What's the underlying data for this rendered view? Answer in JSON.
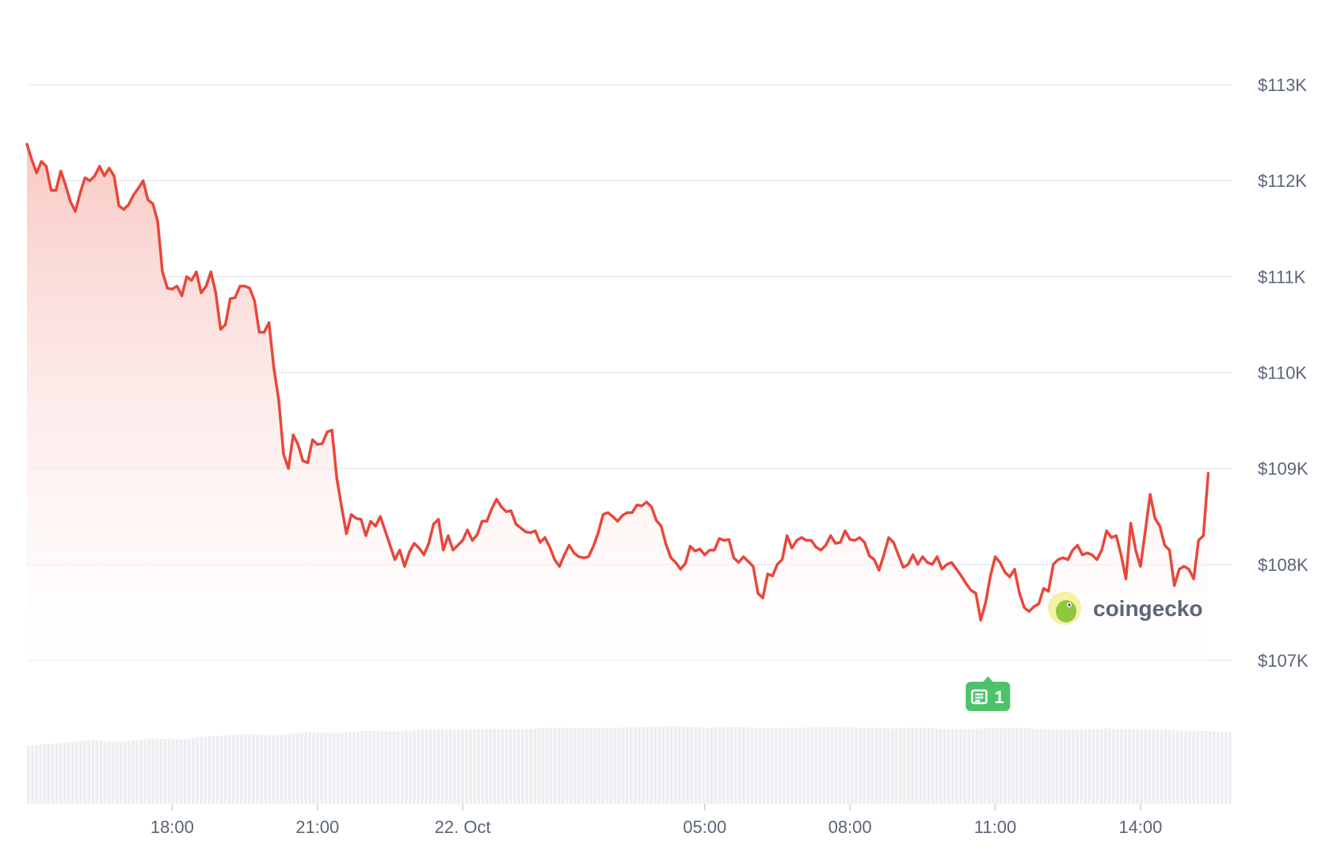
{
  "chart_data": {
    "type": "area",
    "ylim": [
      107000,
      113000
    ],
    "y_ticks": [
      {
        "value": 113000,
        "label": "$113K"
      },
      {
        "value": 112000,
        "label": "$112K"
      },
      {
        "value": 111000,
        "label": "$111K"
      },
      {
        "value": 110000,
        "label": "$110K"
      },
      {
        "value": 109000,
        "label": "$109K"
      },
      {
        "value": 108000,
        "label": "$108K"
      },
      {
        "value": 107000,
        "label": "$107K"
      }
    ],
    "x_range_hours": [
      15,
      39.9
    ],
    "x_ticks": [
      {
        "hour": 18,
        "label": "18:00"
      },
      {
        "hour": 21,
        "label": "21:00"
      },
      {
        "hour": 24,
        "label": "22. Oct"
      },
      {
        "hour": 29,
        "label": "05:00"
      },
      {
        "hour": 32,
        "label": "08:00"
      },
      {
        "hour": 35,
        "label": "11:00"
      },
      {
        "hour": 38,
        "label": "14:00"
      }
    ],
    "series": [
      {
        "points": [
          [
            15.0,
            112380
          ],
          [
            15.1,
            112220
          ],
          [
            15.2,
            112080
          ],
          [
            15.3,
            112200
          ],
          [
            15.4,
            112150
          ],
          [
            15.5,
            111900
          ],
          [
            15.6,
            111900
          ],
          [
            15.7,
            112100
          ],
          [
            15.8,
            111950
          ],
          [
            15.9,
            111780
          ],
          [
            16.0,
            111680
          ],
          [
            16.1,
            111870
          ],
          [
            16.2,
            112030
          ],
          [
            16.3,
            112000
          ],
          [
            16.4,
            112050
          ],
          [
            16.5,
            112150
          ],
          [
            16.6,
            112050
          ],
          [
            16.7,
            112130
          ],
          [
            16.8,
            112050
          ],
          [
            16.9,
            111740
          ],
          [
            17.0,
            111700
          ],
          [
            17.1,
            111750
          ],
          [
            17.2,
            111850
          ],
          [
            17.3,
            111920
          ],
          [
            17.4,
            112000
          ],
          [
            17.5,
            111800
          ],
          [
            17.6,
            111760
          ],
          [
            17.7,
            111580
          ],
          [
            17.8,
            111050
          ],
          [
            17.9,
            110880
          ],
          [
            18.0,
            110870
          ],
          [
            18.1,
            110900
          ],
          [
            18.2,
            110800
          ],
          [
            18.3,
            111000
          ],
          [
            18.4,
            110960
          ],
          [
            18.5,
            111050
          ],
          [
            18.6,
            110830
          ],
          [
            18.7,
            110900
          ],
          [
            18.8,
            111050
          ],
          [
            18.9,
            110830
          ],
          [
            19.0,
            110450
          ],
          [
            19.1,
            110500
          ],
          [
            19.2,
            110770
          ],
          [
            19.3,
            110780
          ],
          [
            19.4,
            110900
          ],
          [
            19.5,
            110900
          ],
          [
            19.6,
            110880
          ],
          [
            19.7,
            110750
          ],
          [
            19.8,
            110420
          ],
          [
            19.9,
            110420
          ],
          [
            20.0,
            110520
          ],
          [
            20.1,
            110050
          ],
          [
            20.2,
            109720
          ],
          [
            20.3,
            109150
          ],
          [
            20.4,
            109000
          ],
          [
            20.5,
            109350
          ],
          [
            20.6,
            109250
          ],
          [
            20.7,
            109080
          ],
          [
            20.8,
            109060
          ],
          [
            20.9,
            109300
          ],
          [
            21.0,
            109250
          ],
          [
            21.1,
            109260
          ],
          [
            21.2,
            109380
          ],
          [
            21.3,
            109400
          ],
          [
            21.4,
            108900
          ],
          [
            21.5,
            108600
          ],
          [
            21.6,
            108320
          ],
          [
            21.7,
            108520
          ],
          [
            21.8,
            108480
          ],
          [
            21.9,
            108470
          ],
          [
            22.0,
            108300
          ],
          [
            22.1,
            108450
          ],
          [
            22.2,
            108400
          ],
          [
            22.3,
            108500
          ],
          [
            22.4,
            108350
          ],
          [
            22.5,
            108200
          ],
          [
            22.6,
            108050
          ],
          [
            22.7,
            108150
          ],
          [
            22.8,
            107980
          ],
          [
            22.9,
            108130
          ],
          [
            23.0,
            108220
          ],
          [
            23.1,
            108170
          ],
          [
            23.2,
            108100
          ],
          [
            23.3,
            108220
          ],
          [
            23.4,
            108420
          ],
          [
            23.5,
            108470
          ],
          [
            23.6,
            108150
          ],
          [
            23.7,
            108300
          ],
          [
            23.8,
            108150
          ],
          [
            23.9,
            108200
          ],
          [
            24.0,
            108250
          ],
          [
            24.1,
            108360
          ],
          [
            24.2,
            108250
          ],
          [
            24.3,
            108310
          ],
          [
            24.4,
            108450
          ],
          [
            24.5,
            108450
          ],
          [
            24.6,
            108580
          ],
          [
            24.7,
            108680
          ],
          [
            24.8,
            108600
          ],
          [
            24.9,
            108550
          ],
          [
            25.0,
            108560
          ],
          [
            25.1,
            108420
          ],
          [
            25.2,
            108380
          ],
          [
            25.3,
            108340
          ],
          [
            25.4,
            108330
          ],
          [
            25.5,
            108350
          ],
          [
            25.6,
            108230
          ],
          [
            25.7,
            108280
          ],
          [
            25.8,
            108180
          ],
          [
            25.9,
            108050
          ],
          [
            26.0,
            107980
          ],
          [
            26.1,
            108100
          ],
          [
            26.2,
            108200
          ],
          [
            26.3,
            108120
          ],
          [
            26.4,
            108080
          ],
          [
            26.5,
            108070
          ],
          [
            26.6,
            108080
          ],
          [
            26.7,
            108190
          ],
          [
            26.8,
            108330
          ],
          [
            26.9,
            108520
          ],
          [
            27.0,
            108540
          ],
          [
            27.1,
            108500
          ],
          [
            27.2,
            108450
          ],
          [
            27.3,
            108510
          ],
          [
            27.4,
            108540
          ],
          [
            27.5,
            108540
          ],
          [
            27.6,
            108620
          ],
          [
            27.7,
            108610
          ],
          [
            27.8,
            108650
          ],
          [
            27.9,
            108600
          ],
          [
            28.0,
            108460
          ],
          [
            28.1,
            108400
          ],
          [
            28.2,
            108210
          ],
          [
            28.3,
            108070
          ],
          [
            28.4,
            108020
          ],
          [
            28.5,
            107950
          ],
          [
            28.6,
            108010
          ],
          [
            28.7,
            108190
          ],
          [
            28.8,
            108140
          ],
          [
            28.9,
            108160
          ],
          [
            29.0,
            108100
          ],
          [
            29.1,
            108150
          ],
          [
            29.2,
            108150
          ],
          [
            29.3,
            108270
          ],
          [
            29.4,
            108250
          ],
          [
            29.5,
            108260
          ],
          [
            29.6,
            108070
          ],
          [
            29.7,
            108020
          ],
          [
            29.8,
            108080
          ],
          [
            29.9,
            108030
          ],
          [
            30.0,
            107980
          ],
          [
            30.1,
            107700
          ],
          [
            30.2,
            107650
          ],
          [
            30.3,
            107900
          ],
          [
            30.4,
            107880
          ],
          [
            30.5,
            108000
          ],
          [
            30.6,
            108050
          ],
          [
            30.7,
            108300
          ],
          [
            30.8,
            108170
          ],
          [
            30.9,
            108250
          ],
          [
            31.0,
            108280
          ],
          [
            31.1,
            108250
          ],
          [
            31.2,
            108250
          ],
          [
            31.3,
            108180
          ],
          [
            31.4,
            108150
          ],
          [
            31.5,
            108200
          ],
          [
            31.6,
            108300
          ],
          [
            31.7,
            108220
          ],
          [
            31.8,
            108230
          ],
          [
            31.9,
            108350
          ],
          [
            32.0,
            108260
          ],
          [
            32.1,
            108250
          ],
          [
            32.2,
            108280
          ],
          [
            32.3,
            108230
          ],
          [
            32.4,
            108090
          ],
          [
            32.5,
            108050
          ],
          [
            32.6,
            107940
          ],
          [
            32.7,
            108100
          ],
          [
            32.8,
            108280
          ],
          [
            32.9,
            108230
          ],
          [
            33.0,
            108100
          ],
          [
            33.1,
            107970
          ],
          [
            33.2,
            108000
          ],
          [
            33.3,
            108100
          ],
          [
            33.4,
            108000
          ],
          [
            33.5,
            108080
          ],
          [
            33.6,
            108020
          ],
          [
            33.7,
            108000
          ],
          [
            33.8,
            108080
          ],
          [
            33.9,
            107950
          ],
          [
            34.0,
            108000
          ],
          [
            34.1,
            108020
          ],
          [
            34.2,
            107950
          ],
          [
            34.3,
            107880
          ],
          [
            34.4,
            107800
          ],
          [
            34.5,
            107730
          ],
          [
            34.6,
            107700
          ],
          [
            34.7,
            107420
          ],
          [
            34.8,
            107600
          ],
          [
            34.9,
            107880
          ],
          [
            35.0,
            108080
          ],
          [
            35.1,
            108020
          ],
          [
            35.2,
            107920
          ],
          [
            35.3,
            107870
          ],
          [
            35.4,
            107950
          ],
          [
            35.5,
            107700
          ],
          [
            35.6,
            107550
          ],
          [
            35.7,
            107510
          ],
          [
            35.8,
            107560
          ],
          [
            35.9,
            107590
          ],
          [
            36.0,
            107750
          ],
          [
            36.1,
            107720
          ],
          [
            36.2,
            108000
          ],
          [
            36.3,
            108050
          ],
          [
            36.4,
            108070
          ],
          [
            36.5,
            108050
          ],
          [
            36.6,
            108150
          ],
          [
            36.7,
            108200
          ],
          [
            36.8,
            108100
          ],
          [
            36.9,
            108120
          ],
          [
            37.0,
            108100
          ],
          [
            37.1,
            108050
          ],
          [
            37.2,
            108150
          ],
          [
            37.3,
            108350
          ],
          [
            37.4,
            108280
          ],
          [
            37.5,
            108300
          ],
          [
            37.6,
            108100
          ],
          [
            37.7,
            107850
          ],
          [
            37.8,
            108430
          ],
          [
            37.9,
            108150
          ],
          [
            38.0,
            107980
          ],
          [
            38.1,
            108350
          ],
          [
            38.2,
            108730
          ],
          [
            38.3,
            108480
          ],
          [
            38.4,
            108400
          ],
          [
            38.5,
            108200
          ],
          [
            38.6,
            108150
          ],
          [
            38.7,
            107780
          ],
          [
            38.8,
            107950
          ],
          [
            38.9,
            107980
          ],
          [
            39.0,
            107950
          ],
          [
            39.1,
            107850
          ],
          [
            39.2,
            108250
          ],
          [
            39.3,
            108300
          ],
          [
            39.4,
            108950
          ]
        ]
      }
    ],
    "volume": {
      "values": [
        0.75,
        0.78,
        0.82,
        0.8,
        0.84,
        0.83,
        0.87,
        0.9,
        0.88,
        0.92,
        0.91,
        0.94,
        0.93,
        0.96,
        0.95,
        0.97,
        0.96,
        0.98,
        0.97,
        0.98,
        0.99,
        1.0,
        0.98,
        0.99,
        0.97,
        0.98,
        0.99,
        0.98,
        0.97,
        0.98,
        0.96,
        0.97,
        0.98,
        0.96,
        0.95,
        0.97,
        0.96,
        0.95,
        0.94,
        0.92
      ]
    },
    "colors": {
      "line": "#e8473b",
      "fill_top": "#f8c6c1",
      "grid": "#ececf0",
      "volume": "#eceef2",
      "news_badge": "#4cc26b"
    },
    "news_marker": {
      "hour": 34.85,
      "count": "1"
    }
  },
  "watermark": {
    "text": "coingecko"
  }
}
